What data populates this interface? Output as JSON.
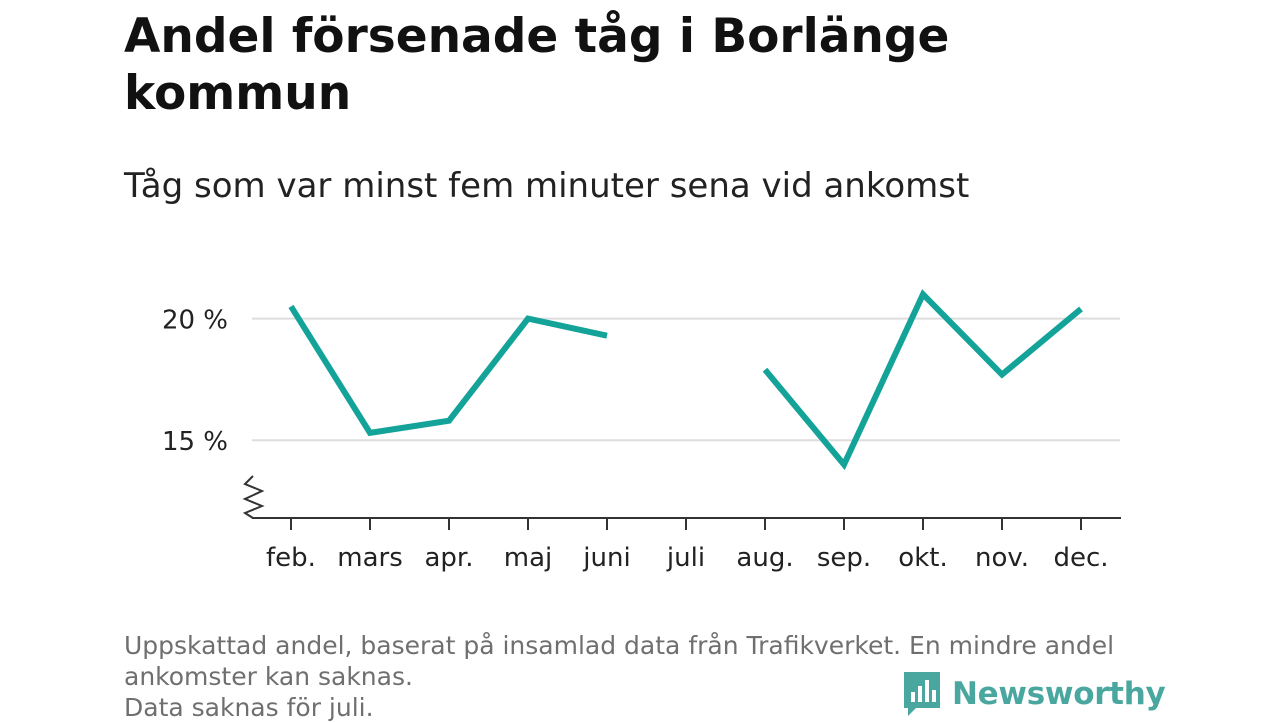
{
  "title": "Andel försenade tåg i Borlänge kommun",
  "subtitle": "Tåg som var minst fem minuter sena vid ankomst",
  "footnote": {
    "line1": "Uppskattad andel, baserat på insamlad data från Trafikverket. En mindre andel",
    "line2": "ankomster kan saknas.",
    "line3": "Data saknas för juli."
  },
  "brand": {
    "name": "Newsworthy",
    "icon": "newsworthy-logo-icon",
    "color": "#4aa7a0"
  },
  "colors": {
    "line": "#14a399",
    "grid": "#dddddd",
    "axis": "#333333",
    "text": "#222222"
  },
  "chart_data": {
    "type": "line",
    "categories": [
      "feb.",
      "mars",
      "apr.",
      "maj",
      "juni",
      "juli",
      "aug.",
      "sep.",
      "okt.",
      "nov.",
      "dec."
    ],
    "series": [
      {
        "values": [
          20.5,
          15.3,
          15.8,
          20.0,
          19.3,
          null,
          17.9,
          14.0,
          21.0,
          17.7,
          20.4
        ]
      }
    ],
    "yticks": [
      15,
      20
    ],
    "ytick_labels": [
      "15 %",
      "20 %"
    ],
    "ylim": [
      11.8,
      22
    ],
    "axis_break": true,
    "grid": "horizontal",
    "legend": "none"
  }
}
